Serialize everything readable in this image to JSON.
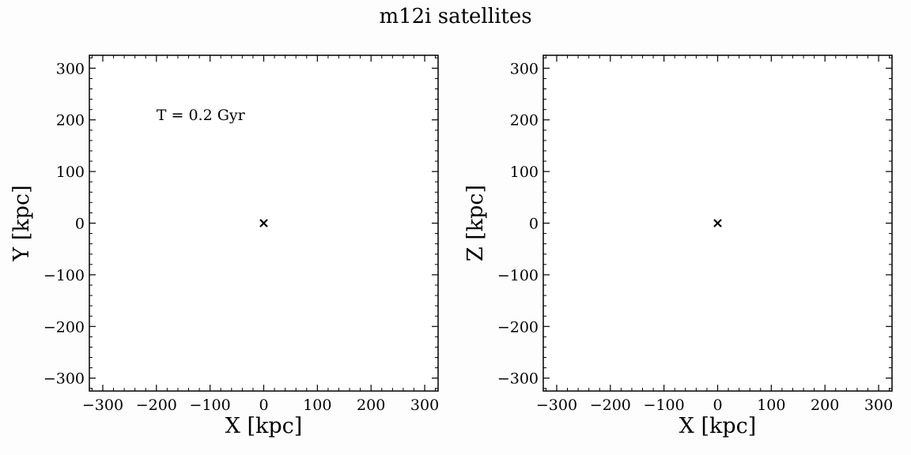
{
  "figure": {
    "title": "m12i satellites"
  },
  "chart_data": [
    {
      "type": "scatter",
      "xlabel": "X [kpc]",
      "ylabel": "Y [kpc]",
      "xlim": [
        -325,
        325
      ],
      "ylim": [
        -325,
        325
      ],
      "ticks": [
        -300,
        -200,
        -100,
        0,
        100,
        200,
        300
      ],
      "tick_labels": [
        "−300",
        "−200",
        "−100",
        "0",
        "100",
        "200",
        "300"
      ],
      "annotation": {
        "text": "T = 0.2 Gyr",
        "x": -200,
        "y": 207
      },
      "grid": false,
      "points": [
        {
          "x": 0,
          "y": 0,
          "marker": "x"
        }
      ]
    },
    {
      "type": "scatter",
      "xlabel": "X [kpc]",
      "ylabel": "Z [kpc]",
      "xlim": [
        -325,
        325
      ],
      "ylim": [
        -325,
        325
      ],
      "ticks": [
        -300,
        -200,
        -100,
        0,
        100,
        200,
        300
      ],
      "tick_labels": [
        "−300",
        "−200",
        "−100",
        "0",
        "100",
        "200",
        "300"
      ],
      "grid": false,
      "points": [
        {
          "x": 0,
          "y": 0,
          "marker": "x"
        }
      ]
    }
  ]
}
